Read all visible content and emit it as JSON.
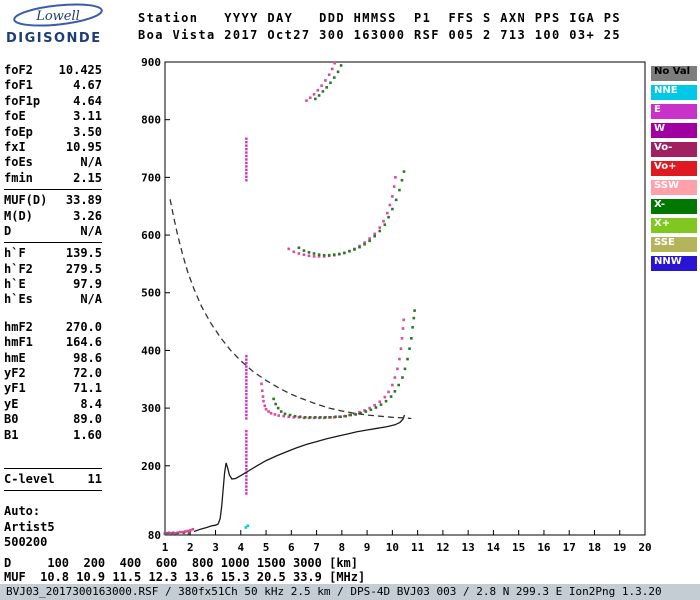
{
  "logo": {
    "name": "Lowell",
    "product": "DIGISONDE"
  },
  "header": {
    "line1": "Station   YYYY DAY   DDD HMMSS  P1  FFS S AXN PPS IGA PS",
    "line2": "Boa Vista 2017 Oct27 300 163000 RSF 005 2 713 100 03+ 25"
  },
  "params": {
    "groups": [
      {
        "rows": [
          [
            "foF2",
            "10.425"
          ],
          [
            "foF1",
            "4.67"
          ],
          [
            "foF1p",
            "4.64"
          ],
          [
            "foE",
            "3.11"
          ],
          [
            "foEp",
            "3.50"
          ],
          [
            "fxI",
            "10.95"
          ],
          [
            "foEs",
            "N/A"
          ],
          [
            "fmin",
            "2.15"
          ]
        ],
        "after": "sep"
      },
      {
        "rows": [
          [
            "MUF(D)",
            "33.89"
          ],
          [
            "M(D)",
            "3.26"
          ],
          [
            "D",
            "N/A"
          ]
        ],
        "after": "sep"
      },
      {
        "rows": [
          [
            "h`F",
            "139.5"
          ],
          [
            "h`F2",
            "279.5"
          ],
          [
            "h`E",
            "97.9"
          ],
          [
            "h`Es",
            "N/A"
          ]
        ],
        "after": "gap"
      },
      {
        "rows": [
          [
            "hmF2",
            "270.0"
          ],
          [
            "hmF1",
            "164.6"
          ],
          [
            "hmE",
            "98.6"
          ],
          [
            "yF2",
            "72.0"
          ],
          [
            "yF1",
            "71.1"
          ],
          [
            "yE",
            "8.4"
          ],
          [
            "B0",
            "89.0"
          ],
          [
            "B1",
            "1.60"
          ]
        ],
        "after": "biggap"
      },
      {
        "rows": [
          [
            "C-level",
            "11"
          ]
        ],
        "boxed": true,
        "after": "gap"
      }
    ],
    "footer": [
      "Auto:",
      "Artist5",
      "500200"
    ]
  },
  "legend": [
    {
      "label": "No Val",
      "color": "#7D7D7D",
      "text_color": "#000000"
    },
    {
      "label": "NNE",
      "color": "#00C8E6",
      "text_color": "#FFFFFF"
    },
    {
      "label": "E",
      "color": "#C832C8",
      "text_color": "#FFFFFF"
    },
    {
      "label": "W",
      "color": "#A000A0",
      "text_color": "#FFFFFF"
    },
    {
      "label": "Vo-",
      "color": "#A02060",
      "text_color": "#FFFFFF"
    },
    {
      "label": "Vo+",
      "color": "#E01820",
      "text_color": "#FFFFFF"
    },
    {
      "label": "SSW",
      "color": "#FFA0AA",
      "text_color": "#FFFFFF"
    },
    {
      "label": "X-",
      "color": "#007800",
      "text_color": "#FFFFFF"
    },
    {
      "label": "X+",
      "color": "#80C820",
      "text_color": "#FFFFFF"
    },
    {
      "label": "SSE",
      "color": "#B4B45A",
      "text_color": "#FFFFFF"
    },
    {
      "label": "NNW",
      "color": "#2814D2",
      "text_color": "#FFFFFF"
    }
  ],
  "chart_data": {
    "type": "scatter",
    "title": "Digisonde ionogram Boa Vista 2017 day 300 16:30:00",
    "xlabel": "[MHz]",
    "ylabel": "[km]",
    "xlim": [
      1,
      20
    ],
    "ylim": [
      80,
      900
    ],
    "grid": false,
    "x_ticks": [
      1,
      2,
      3,
      4,
      5,
      6,
      7,
      8,
      9,
      10,
      11,
      12,
      13,
      14,
      15,
      16,
      17,
      18,
      19,
      20
    ],
    "y_ticks": [
      900,
      800,
      700,
      600,
      500,
      400,
      300,
      200,
      80
    ],
    "series": [
      {
        "name": "f2-o-trace",
        "color": "#E04898",
        "points": [
          [
            4.82,
            342
          ],
          [
            4.85,
            330
          ],
          [
            4.88,
            320
          ],
          [
            4.9,
            312
          ],
          [
            4.95,
            304
          ],
          [
            5.0,
            298
          ],
          [
            5.1,
            294
          ],
          [
            5.2,
            291
          ],
          [
            5.35,
            289
          ],
          [
            5.5,
            287
          ],
          [
            5.7,
            286
          ],
          [
            5.9,
            285
          ],
          [
            6.1,
            284
          ],
          [
            6.3,
            284
          ],
          [
            6.5,
            283
          ],
          [
            6.7,
            283
          ],
          [
            6.9,
            283
          ],
          [
            7.1,
            283
          ],
          [
            7.3,
            283
          ],
          [
            7.5,
            284
          ],
          [
            7.7,
            284
          ],
          [
            7.9,
            285
          ],
          [
            8.1,
            286
          ],
          [
            8.3,
            288
          ],
          [
            8.5,
            290
          ],
          [
            8.7,
            293
          ],
          [
            8.9,
            296
          ],
          [
            9.1,
            300
          ],
          [
            9.3,
            305
          ],
          [
            9.5,
            311
          ],
          [
            9.7,
            319
          ],
          [
            9.85,
            328
          ],
          [
            10.0,
            340
          ],
          [
            10.1,
            353
          ],
          [
            10.2,
            368
          ],
          [
            10.28,
            385
          ],
          [
            10.34,
            403
          ],
          [
            10.38,
            421
          ],
          [
            10.42,
            438
          ],
          [
            10.45,
            453
          ]
        ]
      },
      {
        "name": "f2-x-trace",
        "color": "#287828",
        "points": [
          [
            5.3,
            316
          ],
          [
            5.38,
            307
          ],
          [
            5.48,
            300
          ],
          [
            5.6,
            294
          ],
          [
            5.75,
            290
          ],
          [
            5.95,
            288
          ],
          [
            6.15,
            286
          ],
          [
            6.35,
            285
          ],
          [
            6.55,
            284
          ],
          [
            6.75,
            284
          ],
          [
            6.95,
            284
          ],
          [
            7.15,
            284
          ],
          [
            7.35,
            284
          ],
          [
            7.55,
            284
          ],
          [
            7.75,
            285
          ],
          [
            7.95,
            285
          ],
          [
            8.15,
            286
          ],
          [
            8.35,
            288
          ],
          [
            8.55,
            289
          ],
          [
            8.75,
            291
          ],
          [
            8.95,
            294
          ],
          [
            9.15,
            297
          ],
          [
            9.35,
            301
          ],
          [
            9.55,
            306
          ],
          [
            9.75,
            312
          ],
          [
            9.95,
            320
          ],
          [
            10.1,
            329
          ],
          [
            10.25,
            340
          ],
          [
            10.4,
            353
          ],
          [
            10.5,
            368
          ],
          [
            10.6,
            385
          ],
          [
            10.68,
            403
          ],
          [
            10.75,
            421
          ],
          [
            10.8,
            440
          ],
          [
            10.85,
            456
          ],
          [
            10.88,
            469
          ]
        ]
      },
      {
        "name": "second-hop-o-trace",
        "color": "#E04898",
        "points": [
          [
            5.9,
            576
          ],
          [
            6.1,
            571
          ],
          [
            6.3,
            568
          ],
          [
            6.5,
            566
          ],
          [
            6.7,
            564
          ],
          [
            6.9,
            563
          ],
          [
            7.1,
            563
          ],
          [
            7.3,
            563
          ],
          [
            7.5,
            564
          ],
          [
            7.7,
            565
          ],
          [
            7.9,
            567
          ],
          [
            8.1,
            569
          ],
          [
            8.3,
            572
          ],
          [
            8.5,
            576
          ],
          [
            8.7,
            581
          ],
          [
            8.9,
            587
          ],
          [
            9.1,
            594
          ],
          [
            9.3,
            602
          ],
          [
            9.5,
            613
          ],
          [
            9.65,
            624
          ],
          [
            9.8,
            638
          ],
          [
            9.9,
            652
          ],
          [
            10.0,
            667
          ],
          [
            10.07,
            684
          ],
          [
            10.12,
            700
          ]
        ]
      },
      {
        "name": "second-hop-x-trace",
        "color": "#287828",
        "points": [
          [
            6.3,
            578
          ],
          [
            6.5,
            573
          ],
          [
            6.7,
            570
          ],
          [
            6.9,
            568
          ],
          [
            7.1,
            566
          ],
          [
            7.3,
            565
          ],
          [
            7.5,
            565
          ],
          [
            7.7,
            566
          ],
          [
            7.9,
            567
          ],
          [
            8.1,
            569
          ],
          [
            8.3,
            572
          ],
          [
            8.5,
            575
          ],
          [
            8.7,
            579
          ],
          [
            8.9,
            584
          ],
          [
            9.1,
            590
          ],
          [
            9.3,
            598
          ],
          [
            9.5,
            607
          ],
          [
            9.7,
            618
          ],
          [
            9.85,
            631
          ],
          [
            10.0,
            645
          ],
          [
            10.15,
            661
          ],
          [
            10.28,
            678
          ],
          [
            10.38,
            695
          ],
          [
            10.46,
            710
          ]
        ]
      },
      {
        "name": "third-hop-o-trace",
        "color": "#E04898",
        "points": [
          [
            6.6,
            833
          ],
          [
            6.75,
            838
          ],
          [
            6.9,
            844
          ],
          [
            7.05,
            851
          ],
          [
            7.2,
            859
          ],
          [
            7.35,
            868
          ],
          [
            7.5,
            878
          ],
          [
            7.62,
            888
          ],
          [
            7.72,
            898
          ]
        ]
      },
      {
        "name": "third-hop-x-trace",
        "color": "#287828",
        "points": [
          [
            6.95,
            836
          ],
          [
            7.1,
            842
          ],
          [
            7.25,
            849
          ],
          [
            7.4,
            856
          ],
          [
            7.55,
            864
          ],
          [
            7.7,
            873
          ],
          [
            7.85,
            883
          ],
          [
            7.97,
            894
          ]
        ]
      },
      {
        "name": "fmin-echoes",
        "color": "#E04898",
        "points": [
          [
            1.0,
            84
          ],
          [
            1.08,
            83
          ],
          [
            1.16,
            84
          ],
          [
            1.25,
            83
          ],
          [
            1.33,
            84
          ],
          [
            1.42,
            83
          ],
          [
            1.5,
            84
          ],
          [
            1.6,
            85
          ],
          [
            1.7,
            85
          ],
          [
            1.8,
            86
          ],
          [
            1.9,
            87
          ],
          [
            2.0,
            88
          ],
          [
            2.1,
            90
          ]
        ]
      },
      {
        "name": "noval-echoes",
        "color": "#606060",
        "points": [
          [
            1.0,
            82
          ],
          [
            1.12,
            82
          ],
          [
            1.3,
            82
          ],
          [
            1.5,
            82
          ],
          [
            1.75,
            82
          ],
          [
            1.95,
            83
          ]
        ]
      },
      {
        "name": "es-marks-cyan",
        "color": "#00C8E6",
        "points": [
          [
            4.2,
            93
          ],
          [
            4.28,
            96
          ]
        ]
      }
    ],
    "columns": [
      {
        "name": "es-spread-column",
        "f": 4.22,
        "color": "#C832C8",
        "step": 6,
        "ranges": [
          [
            152,
            262
          ],
          [
            282,
            392
          ],
          [
            695,
            768
          ]
        ]
      }
    ],
    "lines": [
      {
        "name": "true-height-profile",
        "style": "solid",
        "color": "#1A1A1A",
        "points": [
          [
            2.15,
            86
          ],
          [
            2.4,
            90
          ],
          [
            2.65,
            93
          ],
          [
            2.85,
            96
          ],
          [
            3.0,
            97
          ],
          [
            3.1,
            99
          ],
          [
            3.18,
            108
          ],
          [
            3.24,
            128
          ],
          [
            3.3,
            158
          ],
          [
            3.36,
            188
          ],
          [
            3.42,
            205
          ],
          [
            3.48,
            196
          ],
          [
            3.55,
            184
          ],
          [
            3.65,
            177
          ],
          [
            3.8,
            178
          ],
          [
            4.0,
            183
          ],
          [
            4.3,
            191
          ],
          [
            4.6,
            199
          ],
          [
            5.0,
            209
          ],
          [
            5.4,
            217
          ],
          [
            5.8,
            224
          ],
          [
            6.2,
            231
          ],
          [
            6.6,
            237
          ],
          [
            7.0,
            242
          ],
          [
            7.4,
            247
          ],
          [
            7.8,
            251
          ],
          [
            8.2,
            255
          ],
          [
            8.6,
            259
          ],
          [
            9.0,
            262
          ],
          [
            9.4,
            265
          ],
          [
            9.8,
            268
          ],
          [
            10.1,
            271
          ],
          [
            10.3,
            275
          ],
          [
            10.42,
            281
          ],
          [
            10.48,
            288
          ]
        ]
      },
      {
        "name": "muf-curve",
        "style": "dashed",
        "color": "#333333",
        "points": [
          [
            1.2,
            662
          ],
          [
            1.35,
            630
          ],
          [
            1.5,
            600
          ],
          [
            1.7,
            566
          ],
          [
            1.9,
            536
          ],
          [
            2.15,
            506
          ],
          [
            2.45,
            476
          ],
          [
            2.8,
            448
          ],
          [
            3.2,
            422
          ],
          [
            3.6,
            400
          ],
          [
            4.0,
            382
          ],
          [
            4.5,
            363
          ],
          [
            5.0,
            348
          ],
          [
            5.5,
            335
          ],
          [
            6.0,
            324
          ],
          [
            6.5,
            315
          ],
          [
            7.0,
            307
          ],
          [
            7.5,
            300
          ],
          [
            8.0,
            295
          ],
          [
            8.5,
            291
          ],
          [
            9.0,
            288
          ],
          [
            9.5,
            286
          ],
          [
            10.0,
            284
          ],
          [
            10.5,
            283
          ],
          [
            10.75,
            282
          ]
        ]
      }
    ]
  },
  "dmuf": {
    "rows": [
      {
        "label": "D",
        "values": [
          "100",
          "200",
          "400",
          "600",
          "800",
          "1000",
          "1500",
          "3000"
        ],
        "unit": "[km]"
      },
      {
        "label": "MUF",
        "values": [
          "10.8",
          "10.9",
          "11.5",
          "12.3",
          "13.6",
          "15.3",
          "20.5",
          "33.9"
        ],
        "unit": "[MHz]"
      }
    ]
  },
  "status_bar": {
    "text": "BVJ03_2017300163000.RSF / 380fx51Ch 50 kHz 2.5 km / DPS-4D BVJ03 003 / 2.8 N 299.3 E Ion2Png 1.3.20"
  }
}
